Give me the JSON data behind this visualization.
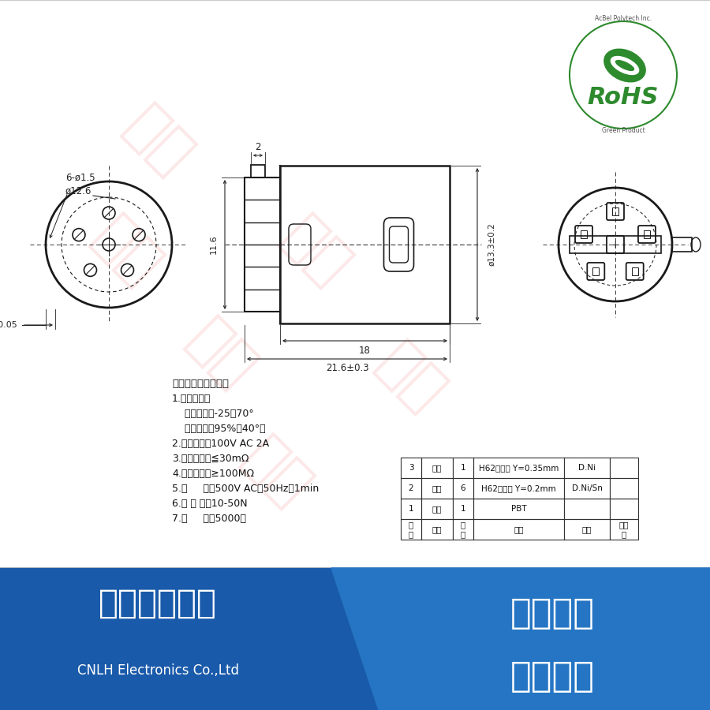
{
  "main_bg": "#ffffff",
  "blue_bar_color": "#1a5aaa",
  "blue_bar_color2": "#2575c4",
  "footer_text_left1": "温州领华电子",
  "footer_text_left2": "CNLH Electronics Co.,Ltd",
  "footer_text_right1": "追求品质",
  "footer_text_right2": "创造价値",
  "specs_title": "主要技术特性要求：",
  "specs": [
    "1.使用条件：",
    "    环境温度：-25～70°",
    "    相对湿度：95%（40°）",
    "2.额定负荷：100V AC 2A",
    "3.接触电阱：≦30mΩ",
    "4.绕缘电阱：≥100MΩ",
    "5.耐     压：500V AC（50Hz）1min",
    "6.插 拔 力：10-50N",
    "7.寿     命：5000次"
  ],
  "table_rows": [
    [
      "3",
      "铜套",
      "1",
      "H62黄铜带 Y=0.35mm",
      "D.Ni",
      ""
    ],
    [
      "2",
      "插针",
      "6",
      "H62黄铜带 Y=0.2mm",
      "D.Ni/Sn",
      ""
    ],
    [
      "1",
      "基座",
      "1",
      "PBT",
      "",
      ""
    ],
    [
      "序\n号",
      "名称",
      "数\n量",
      "材料",
      "处理",
      "单件\n质"
    ]
  ],
  "dim_color": "#222222",
  "line_color": "#1a1a1a",
  "rohs_green": "#2d8a2d",
  "rohs_red": "#cc0000"
}
